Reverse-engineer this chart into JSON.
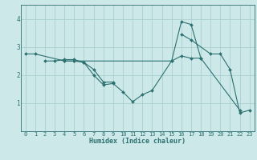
{
  "bg_color": "#cde8e8",
  "line_color": "#2d7070",
  "grid_color": "#aacfcf",
  "xlabel": "Humidex (Indice chaleur)",
  "xlim": [
    -0.5,
    23.5
  ],
  "ylim": [
    0.0,
    4.5
  ],
  "yticks": [
    1,
    2,
    3,
    4
  ],
  "xticks": [
    0,
    1,
    2,
    3,
    4,
    5,
    6,
    7,
    8,
    9,
    10,
    11,
    12,
    13,
    14,
    15,
    16,
    17,
    18,
    19,
    20,
    21,
    22,
    23
  ],
  "series": [
    {
      "x": [
        0,
        1,
        4,
        5,
        15,
        16,
        17,
        18
      ],
      "y": [
        2.75,
        2.75,
        2.5,
        2.5,
        2.5,
        2.68,
        2.6,
        2.6
      ]
    },
    {
      "x": [
        2,
        3,
        4,
        5,
        6,
        7,
        8,
        9
      ],
      "y": [
        2.5,
        2.5,
        2.55,
        2.55,
        2.45,
        2.2,
        1.75,
        1.75
      ]
    },
    {
      "x": [
        4,
        5,
        6,
        7,
        8,
        9,
        10,
        11,
        12,
        13,
        15,
        16,
        17,
        18,
        22
      ],
      "y": [
        2.5,
        2.5,
        2.45,
        2.0,
        1.65,
        1.7,
        1.4,
        1.05,
        1.3,
        1.45,
        2.5,
        3.9,
        3.8,
        2.6,
        0.75
      ]
    },
    {
      "x": [
        16,
        17,
        19,
        20,
        21,
        22,
        23
      ],
      "y": [
        3.45,
        3.25,
        2.75,
        2.75,
        2.2,
        0.65,
        0.75
      ]
    }
  ]
}
